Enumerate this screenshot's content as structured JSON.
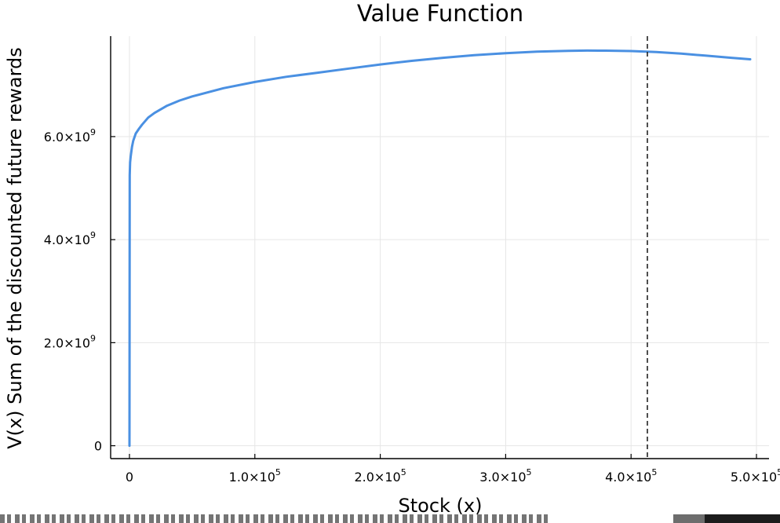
{
  "chart_data": {
    "type": "line",
    "title": "Value Function",
    "xlabel": "Stock (x)",
    "ylabel": "V(x) Sum of the discounted future rewards",
    "xlim": [
      -15000,
      510000
    ],
    "ylim": [
      -250000000,
      7950000000
    ],
    "x_ticks": [
      {
        "value": 0,
        "mantissa": "0",
        "exp": ""
      },
      {
        "value": 100000,
        "mantissa": "1.0×10",
        "exp": "5"
      },
      {
        "value": 200000,
        "mantissa": "2.0×10",
        "exp": "5"
      },
      {
        "value": 300000,
        "mantissa": "3.0×10",
        "exp": "5"
      },
      {
        "value": 400000,
        "mantissa": "4.0×10",
        "exp": "5"
      },
      {
        "value": 500000,
        "mantissa": "5.0×10",
        "exp": "5"
      }
    ],
    "y_ticks": [
      {
        "value": 0,
        "mantissa": "0",
        "exp": ""
      },
      {
        "value": 2000000000,
        "mantissa": "2.0×10",
        "exp": "9"
      },
      {
        "value": 4000000000,
        "mantissa": "4.0×10",
        "exp": "9"
      },
      {
        "value": 6000000000,
        "mantissa": "6.0×10",
        "exp": "9"
      }
    ],
    "grid": true,
    "legend": "none",
    "series": [
      {
        "color": "#4a90e2",
        "x": [
          0,
          200,
          500,
          1000,
          2000,
          3000,
          5000,
          7500,
          10000,
          15000,
          20000,
          30000,
          40000,
          50000,
          75000,
          100000,
          125000,
          150000,
          175000,
          200000,
          225000,
          250000,
          275000,
          300000,
          325000,
          350000,
          365000,
          380000,
          400000,
          420000,
          440000,
          460000,
          480000,
          495000
        ],
        "y": [
          0,
          5250000000,
          5500000000,
          5620000000,
          5800000000,
          5920000000,
          6060000000,
          6150000000,
          6230000000,
          6370000000,
          6460000000,
          6600000000,
          6700000000,
          6780000000,
          6940000000,
          7060000000,
          7160000000,
          7240000000,
          7320000000,
          7400000000,
          7470000000,
          7530000000,
          7580000000,
          7620000000,
          7650000000,
          7665000000,
          7670000000,
          7668000000,
          7660000000,
          7640000000,
          7610000000,
          7570000000,
          7530000000,
          7500000000
        ]
      }
    ],
    "vline": {
      "x": 413000,
      "color": "#222222",
      "style": "dashed"
    }
  }
}
